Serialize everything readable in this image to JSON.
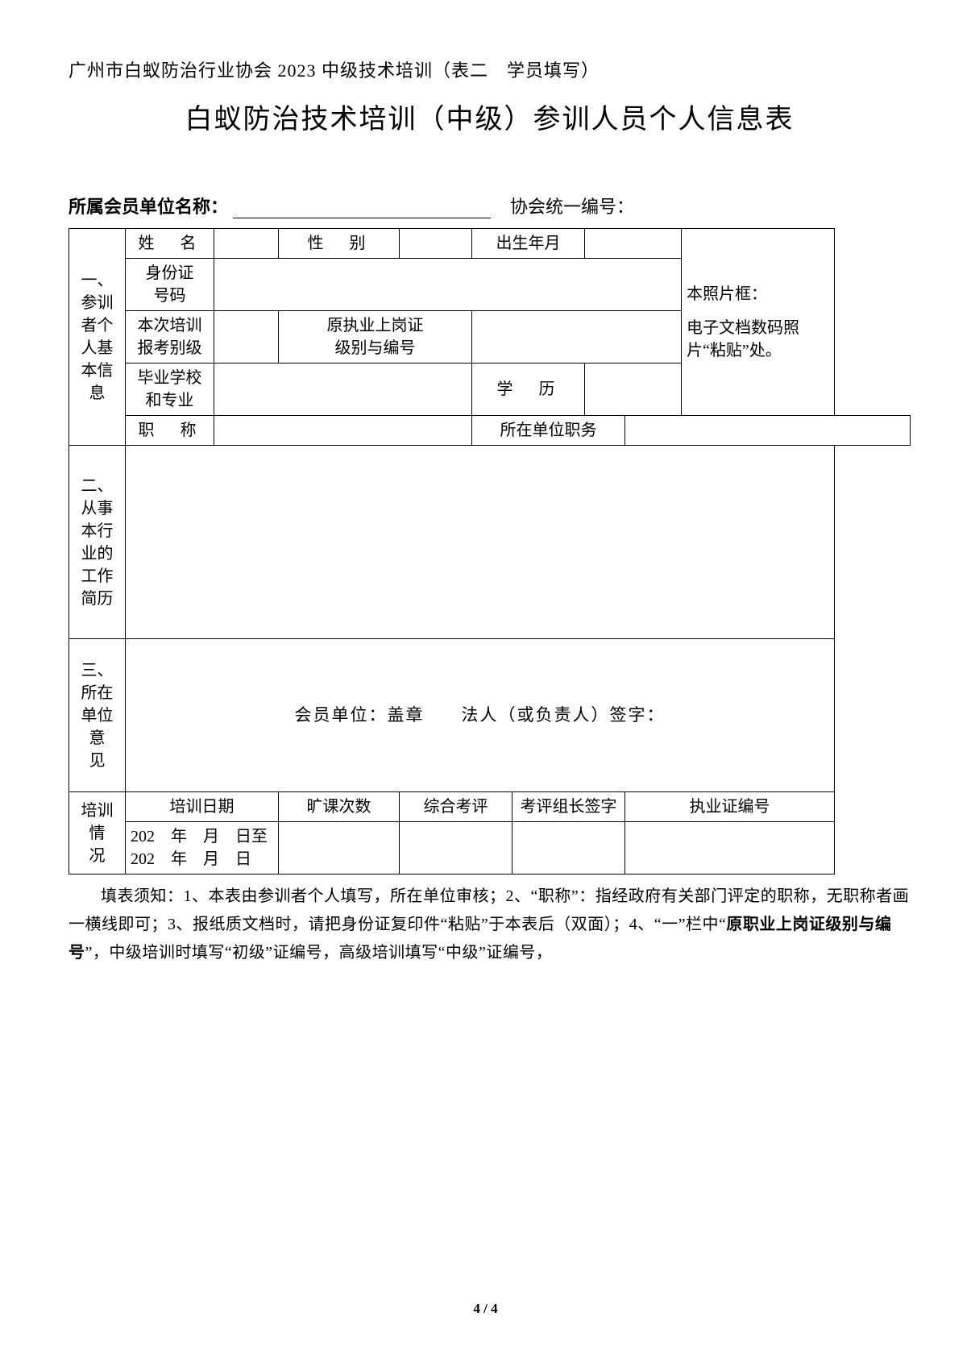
{
  "header": "广州市白蚁防治行业协会 2023 中级技术培训（表二　学员填写）",
  "title": "白蚁防治技术培训（中级）参训人员个人信息表",
  "company_label": "所属会员单位名称：",
  "assoc_label": "协会统一编号：",
  "section1": {
    "head": "一、参训者个人基本信息",
    "name": "姓　名",
    "gender": "性　别",
    "birth": "出生年月",
    "id_no": "身份证号码",
    "exam_level": "本次培训报考别级",
    "orig_cert": "原执业上岗证级别与编号",
    "school": "毕业学校和专业",
    "edu": "学　历",
    "title_label": "职　称",
    "position": "所在单位职务",
    "photo_l1": "本照片框：",
    "photo_l2": "电子文档数码照片“粘贴”处。"
  },
  "section2_head": "二、从事本行业的工作简历",
  "section3": {
    "head": "三、所在单位意见",
    "seal": "会员单位：盖章　　法人（或负责人）签字："
  },
  "training": {
    "head": "培训情况",
    "date_label": "培训日期",
    "absent": "旷课次数",
    "eval": "综合考评",
    "leader_sign": "考评组长签字",
    "cert_no": "执业证编号",
    "date_l1": "202　年　月　日至",
    "date_l2": "202　年　月　日"
  },
  "notes": "填表须知：1、本表由参训者个人填写，所在单位审核；2、“职称”：指经政府有关部门评定的职称，无职称者画一横线即可；3、报纸质文档时，请把身份证复印件“粘贴”于本表后（双面）；4、“一”栏中“原职业上岗证级别与编号”，中级培训时填写“初级”证编号，高级培训填写“中级”证编号，",
  "notes_bold_phrase": "原职业上岗证级别与编号",
  "page_number": "4 / 4"
}
